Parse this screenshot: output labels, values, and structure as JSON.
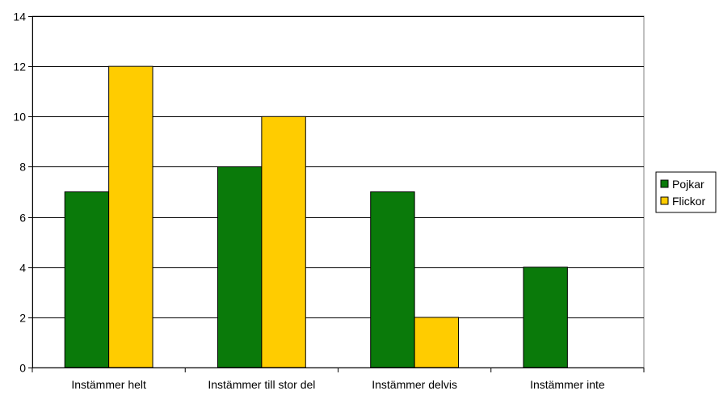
{
  "chart_data": {
    "type": "bar",
    "categories": [
      "Instämmer helt",
      "Instämmer till stor del",
      "Instämmer delvis",
      "Instämmer inte"
    ],
    "series": [
      {
        "name": "Pojkar",
        "values": [
          7,
          8,
          7,
          4
        ],
        "color": "#0a7a0a"
      },
      {
        "name": "Flickor",
        "values": [
          12,
          10,
          2,
          0
        ],
        "color": "#ffcc00"
      }
    ],
    "ylim": [
      0,
      14
    ],
    "yticks": [
      0,
      2,
      4,
      6,
      8,
      10,
      12,
      14
    ],
    "grid": true,
    "legend": "right",
    "title": "",
    "xlabel": "",
    "ylabel": ""
  }
}
